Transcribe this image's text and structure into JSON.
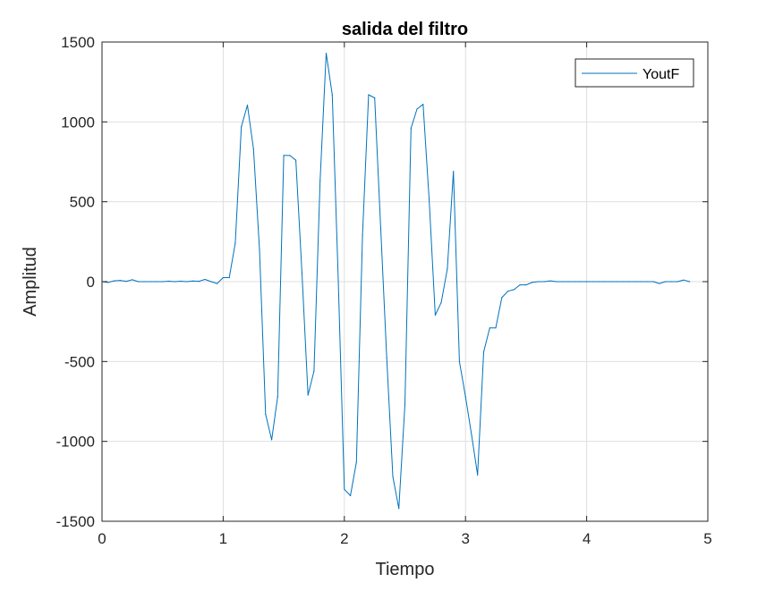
{
  "chart_data": {
    "type": "line",
    "title": "salida del filtro",
    "xlabel": "Tiempo",
    "ylabel": "Amplitud",
    "xlim": [
      0,
      5
    ],
    "ylim": [
      -1500,
      1500
    ],
    "x_ticks": [
      0,
      1,
      2,
      3,
      4,
      5
    ],
    "y_ticks": [
      -1500,
      -1000,
      -500,
      0,
      500,
      1000,
      1500
    ],
    "x_tick_labels": [
      "0",
      "1",
      "2",
      "3",
      "4",
      "5"
    ],
    "y_tick_labels": [
      "-1500",
      "-1000",
      "-500",
      "0",
      "500",
      "1000",
      "1500"
    ],
    "grid": true,
    "legend_position": "top-right",
    "series": [
      {
        "name": "YoutF",
        "color": "#0072BD",
        "x": [
          0,
          0.05,
          0.1,
          0.15,
          0.2,
          0.25,
          0.3,
          0.35,
          0.4,
          0.45,
          0.5,
          0.55,
          0.6,
          0.65,
          0.7,
          0.75,
          0.8,
          0.85,
          0.9,
          0.95,
          1.0,
          1.05,
          1.1,
          1.15,
          1.2,
          1.25,
          1.3,
          1.35,
          1.4,
          1.45,
          1.5,
          1.55,
          1.6,
          1.65,
          1.7,
          1.75,
          1.8,
          1.85,
          1.9,
          1.95,
          2.0,
          2.05,
          2.1,
          2.15,
          2.2,
          2.25,
          2.3,
          2.35,
          2.4,
          2.45,
          2.5,
          2.55,
          2.6,
          2.65,
          2.7,
          2.75,
          2.8,
          2.85,
          2.9,
          2.95,
          3.0,
          3.05,
          3.1,
          3.15,
          3.2,
          3.25,
          3.3,
          3.35,
          3.4,
          3.45,
          3.5,
          3.55,
          3.6,
          3.65,
          3.7,
          3.75,
          3.8,
          3.85,
          3.9,
          3.95,
          4.0,
          4.05,
          4.1,
          4.15,
          4.2,
          4.25,
          4.3,
          4.35,
          4.4,
          4.45,
          4.5,
          4.55,
          4.6,
          4.65,
          4.7,
          4.75,
          4.8,
          4.85
        ],
        "y": [
          0,
          -5,
          5,
          8,
          2,
          12,
          0,
          0,
          0,
          0,
          0,
          3,
          0,
          3,
          0,
          4,
          2,
          14,
          0,
          -12,
          25,
          25,
          240,
          970,
          1105,
          830,
          200,
          -830,
          -990,
          -720,
          790,
          790,
          760,
          60,
          -710,
          -560,
          630,
          1430,
          1170,
          10,
          -1300,
          -1340,
          -1130,
          290,
          1170,
          1150,
          340,
          -480,
          -1220,
          -1420,
          -770,
          960,
          1080,
          1110,
          510,
          -210,
          -130,
          80,
          690,
          -500,
          -720,
          -960,
          -1210,
          -440,
          -290,
          -290,
          -100,
          -60,
          -50,
          -20,
          -20,
          -5,
          0,
          0,
          5,
          0,
          0,
          0,
          0,
          0,
          0,
          0,
          0,
          0,
          0,
          0,
          0,
          0,
          0,
          0,
          0,
          0,
          -12,
          0,
          0,
          0,
          10,
          0
        ]
      }
    ]
  }
}
